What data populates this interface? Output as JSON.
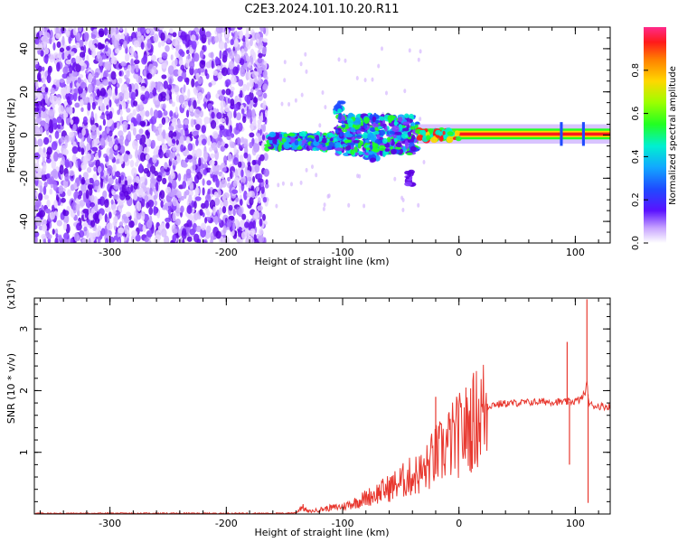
{
  "title": "C2E3.2024.101.10.20.R11",
  "chart_data": [
    {
      "type": "heatmap",
      "name": "spectrogram",
      "xlabel": "Height of straight line (km)",
      "ylabel": "Frequency (Hz)",
      "xlim": [
        -365,
        130
      ],
      "ylim": [
        -50,
        50
      ],
      "xticks": [
        -300,
        -200,
        -100,
        0,
        100
      ],
      "yticks": [
        -40,
        -20,
        0,
        20,
        40
      ],
      "colorbar": {
        "label": "Normalized spectral amplitude",
        "range": [
          0,
          1
        ],
        "ticks": [
          "0.0",
          "0.2",
          "0.4",
          "0.6",
          "0.8"
        ]
      },
      "regions": [
        {
          "x": [
            -365,
            -165
          ],
          "y": [
            -50,
            50
          ],
          "amplitude": "low (0.05-0.2)",
          "pattern": "scattered noise"
        },
        {
          "x": [
            -165,
            -100
          ],
          "y": [
            -7,
            1
          ],
          "amplitude": "0.3-0.5"
        },
        {
          "x": [
            -105,
            -35
          ],
          "y": [
            -12,
            12
          ],
          "amplitude": "0.3-0.6"
        },
        {
          "x": [
            -35,
            130
          ],
          "y": [
            -2,
            3
          ],
          "amplitude": "0.8-1.0"
        }
      ]
    },
    {
      "type": "line",
      "name": "snr",
      "xlabel": "Height of straight line (km)",
      "ylabel": "SNR (10 * v/v)",
      "scale_label": "(x10^4)",
      "xlim": [
        -365,
        130
      ],
      "ylim": [
        0,
        3.5
      ],
      "xticks": [
        -300,
        -200,
        -100,
        0,
        100
      ],
      "yticks": [
        1,
        2,
        3
      ],
      "series": [
        {
          "color": "#e8382f",
          "x": [
            -365,
            -300,
            -200,
            -150,
            -140,
            -135,
            -130,
            -125,
            -120,
            -110,
            -100,
            -90,
            -80,
            -70,
            -60,
            -50,
            -40,
            -30,
            -25,
            -20,
            -15,
            -10,
            -5,
            0,
            5,
            10,
            15,
            20,
            25,
            30,
            40,
            50,
            60,
            70,
            80,
            85,
            90,
            95,
            100,
            104,
            108,
            110,
            112,
            115,
            120,
            130
          ],
          "y": [
            0.01,
            0.01,
            0.01,
            0.01,
            0.02,
            0.12,
            0.04,
            0.05,
            0.07,
            0.1,
            0.12,
            0.18,
            0.26,
            0.34,
            0.42,
            0.52,
            0.62,
            0.68,
            0.82,
            0.95,
            1.0,
            1.12,
            1.2,
            1.28,
            1.35,
            1.45,
            1.55,
            1.66,
            1.74,
            1.78,
            1.79,
            1.8,
            1.81,
            1.82,
            1.82,
            1.82,
            1.81,
            1.82,
            1.83,
            1.85,
            1.95,
            2.1,
            1.78,
            1.76,
            1.75,
            1.74
          ]
        }
      ],
      "annotations_spikes": [
        {
          "x": -20,
          "y": 1.9
        },
        {
          "x": 12,
          "y": 1.93
        },
        {
          "x": 93,
          "y": 2.79
        },
        {
          "x": 95,
          "y": 0.8
        },
        {
          "x": 110,
          "y": 3.48
        },
        {
          "x": 111,
          "y": 0.18
        }
      ]
    }
  ]
}
